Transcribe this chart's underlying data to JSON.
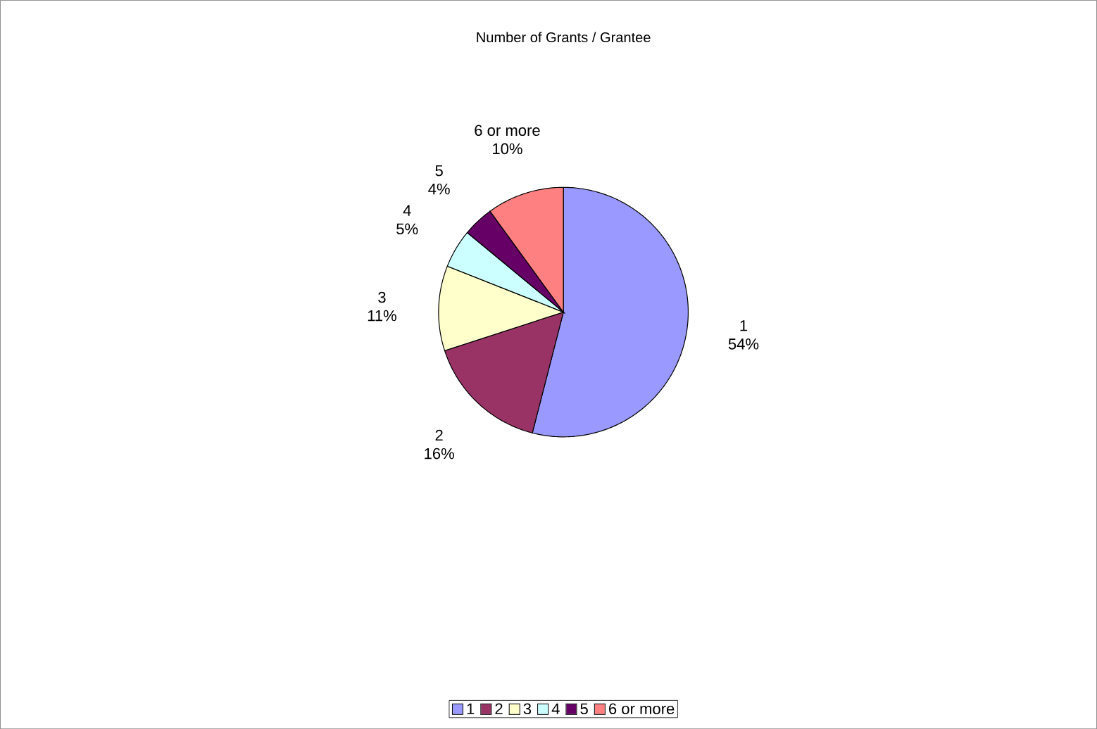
{
  "chart_data": {
    "type": "pie",
    "title": "Number of Grants / Grantee",
    "categories": [
      "1",
      "2",
      "3",
      "4",
      "5",
      "6 or more"
    ],
    "values": [
      54,
      16,
      11,
      5,
      4,
      10
    ],
    "colors": [
      "#9999ff",
      "#993366",
      "#ffffcc",
      "#ccffff",
      "#660066",
      "#ff8080"
    ],
    "value_labels": [
      "54%",
      "16%",
      "11%",
      "5%",
      "4%",
      "10%"
    ],
    "legend": "bottom"
  }
}
